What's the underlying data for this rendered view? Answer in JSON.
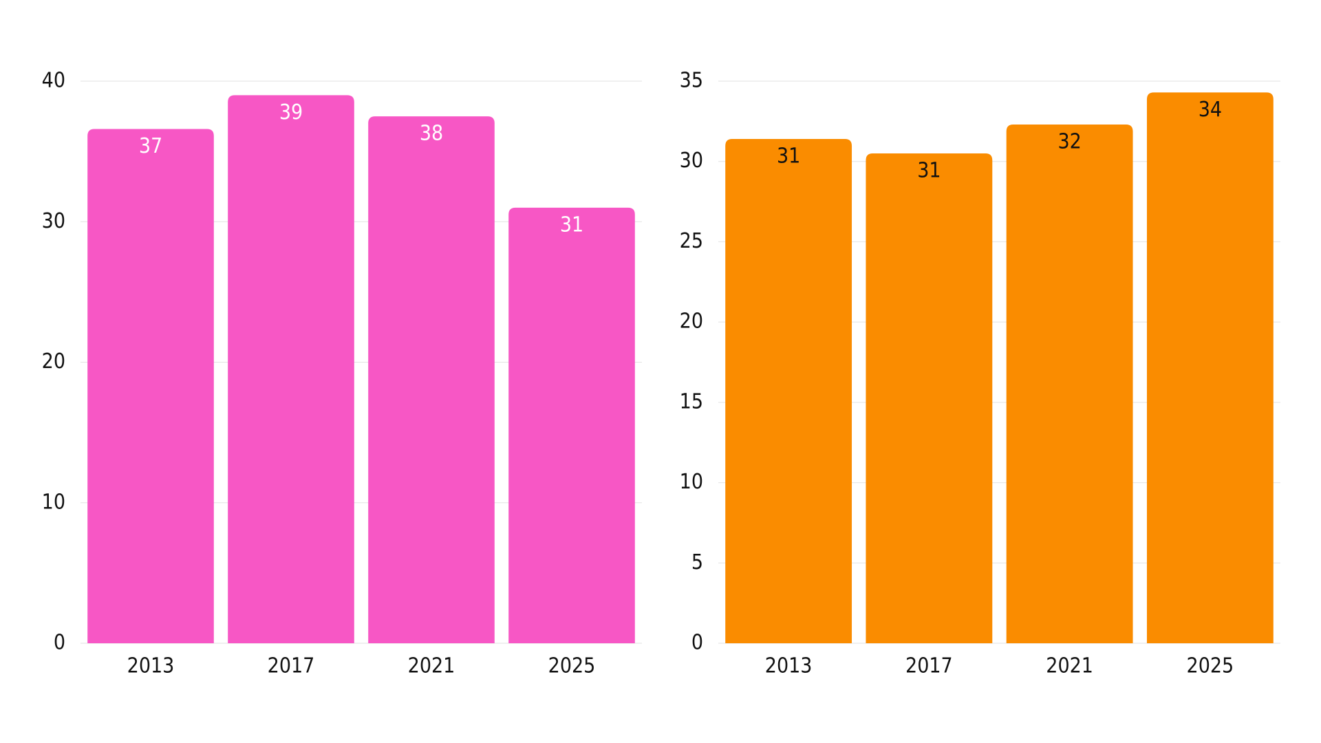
{
  "chart_data": [
    {
      "type": "bar",
      "categories": [
        "2013",
        "2017",
        "2021",
        "2025"
      ],
      "values": [
        36.6,
        39.0,
        37.5,
        31.0
      ],
      "value_labels": [
        "37",
        "39",
        "38",
        "31"
      ],
      "color": "#f757c5",
      "label_color": "#ffffff",
      "ylim": [
        0,
        40
      ],
      "yticks": [
        0,
        10,
        20,
        30,
        40
      ],
      "grid": true
    },
    {
      "type": "bar",
      "categories": [
        "2013",
        "2017",
        "2021",
        "2025"
      ],
      "values": [
        31.4,
        30.5,
        32.3,
        34.3
      ],
      "value_labels": [
        "31",
        "31",
        "32",
        "34"
      ],
      "color": "#fa8c00",
      "label_color": "#111111",
      "ylim": [
        0,
        35
      ],
      "yticks": [
        0,
        5,
        10,
        15,
        20,
        25,
        30,
        35
      ],
      "grid": true
    }
  ]
}
